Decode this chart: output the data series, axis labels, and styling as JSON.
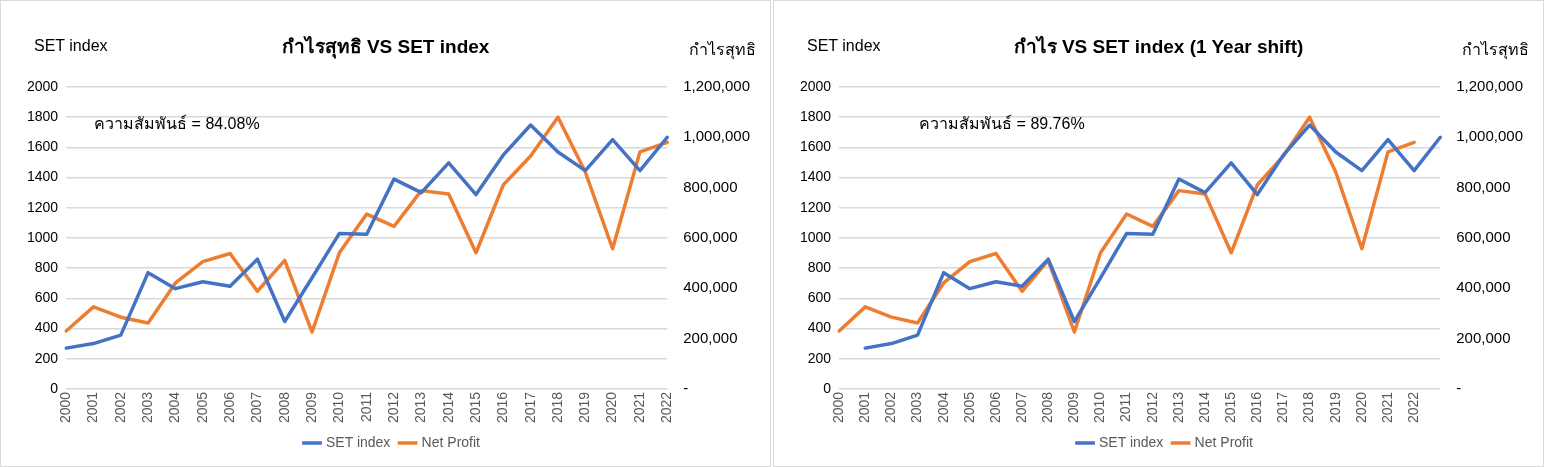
{
  "chart_data": [
    {
      "type": "line",
      "title": "กำไรสุทธิ VS SET index",
      "ylabel": "SET index",
      "y2label": "กำไรสุทธิ",
      "annotations": [
        "ความสัมพันธ์ = 84.08%"
      ],
      "categories": [
        "2000",
        "2001",
        "2002",
        "2003",
        "2004",
        "2005",
        "2006",
        "2007",
        "2008",
        "2009",
        "2010",
        "2011",
        "2012",
        "2013",
        "2014",
        "2015",
        "2016",
        "2017",
        "2018",
        "2019",
        "2020",
        "2021",
        "2022"
      ],
      "series": [
        {
          "name": "SET index",
          "color": "#4472c4",
          "values": [
            270,
            300,
            356,
            770,
            664,
            710,
            680,
            859,
            446,
            736,
            1030,
            1025,
            1390,
            1300,
            1497,
            1287,
            1550,
            1748,
            1569,
            1446,
            1651,
            1446,
            1667
          ]
        },
        {
          "name": "Net Profit",
          "color": "#ed7d31",
          "axis": "y2",
          "values": [
            230000,
            326000,
            285000,
            262000,
            421000,
            506000,
            538000,
            388000,
            511000,
            226000,
            541000,
            695000,
            646000,
            788000,
            775000,
            541000,
            811000,
            926000,
            1080000,
            862000,
            557000,
            942000,
            980000
          ]
        }
      ],
      "ylim": [
        0,
        2000
      ],
      "yticks": [
        0,
        200,
        400,
        600,
        800,
        1000,
        1200,
        1400,
        1600,
        1800,
        2000
      ],
      "y2lim": [
        0,
        1200000
      ],
      "y2ticks": [
        {
          "value": 0,
          "label": "-"
        },
        {
          "value": 200000,
          "label": "200,000"
        },
        {
          "value": 400000,
          "label": "400,000"
        },
        {
          "value": 600000,
          "label": "600,000"
        },
        {
          "value": 800000,
          "label": "800,000"
        },
        {
          "value": 1000000,
          "label": "1,000,000"
        },
        {
          "value": 1200000,
          "label": "1,200,000"
        }
      ],
      "grid": "y",
      "legend": "bottom",
      "marker": "none"
    },
    {
      "type": "line",
      "title": "กำไร VS SET index (1 Year shift)",
      "ylabel": "SET index",
      "y2label": "กำไรสุทธิ",
      "annotations": [
        "ความสัมพันธ์ = 89.76%"
      ],
      "categories": [
        "2000",
        "2001",
        "2002",
        "2003",
        "2004",
        "2005",
        "2006",
        "2007",
        "2008",
        "2009",
        "2010",
        "2011",
        "2012",
        "2013",
        "2014",
        "2015",
        "2016",
        "2017",
        "2018",
        "2019",
        "2020",
        "2021",
        "2022",
        null
      ],
      "series": [
        {
          "name": "SET index",
          "color": "#4472c4",
          "values": [
            null,
            270,
            300,
            356,
            770,
            664,
            710,
            680,
            859,
            446,
            736,
            1030,
            1025,
            1390,
            1300,
            1497,
            1287,
            1550,
            1748,
            1569,
            1446,
            1651,
            1446,
            1667
          ]
        },
        {
          "name": "Net Profit",
          "color": "#ed7d31",
          "axis": "y2",
          "values": [
            230000,
            326000,
            285000,
            262000,
            421000,
            506000,
            538000,
            388000,
            511000,
            226000,
            541000,
            695000,
            646000,
            788000,
            775000,
            541000,
            811000,
            926000,
            1080000,
            862000,
            557000,
            942000,
            980000,
            null
          ]
        }
      ],
      "ylim": [
        0,
        2000
      ],
      "yticks": [
        0,
        200,
        400,
        600,
        800,
        1000,
        1200,
        1400,
        1600,
        1800,
        2000
      ],
      "y2lim": [
        0,
        1200000
      ],
      "y2ticks": [
        {
          "value": 0,
          "label": "-"
        },
        {
          "value": 200000,
          "label": "200,000"
        },
        {
          "value": 400000,
          "label": "400,000"
        },
        {
          "value": 600000,
          "label": "600,000"
        },
        {
          "value": 800000,
          "label": "800,000"
        },
        {
          "value": 1000000,
          "label": "1,000,000"
        },
        {
          "value": 1200000,
          "label": "1,200,000"
        }
      ],
      "grid": "y",
      "legend": "bottom",
      "marker": "none"
    }
  ]
}
